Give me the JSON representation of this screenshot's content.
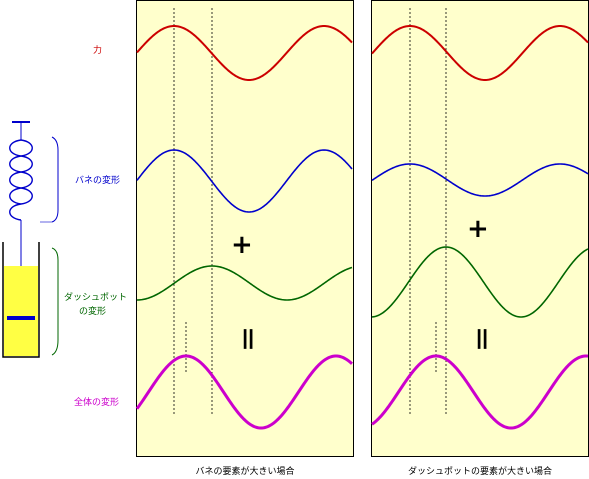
{
  "labels": {
    "force": "力",
    "spring": "バネの変形",
    "dashpot_line1": "ダッシュポット",
    "dashpot_line2": "の変形",
    "total": "全体の変形"
  },
  "captions": {
    "left": "バネの要素が大きい場合",
    "right": "ダッシュポットの要素が大きい場合"
  },
  "symbols": {
    "plus": "+",
    "equals": "＝"
  },
  "colors": {
    "force": "#cc0000",
    "spring": "#0000cc",
    "dashpot": "#006600",
    "total": "#cc00cc",
    "panel": "#ffffcc",
    "fluid": "#ffff44"
  }
}
